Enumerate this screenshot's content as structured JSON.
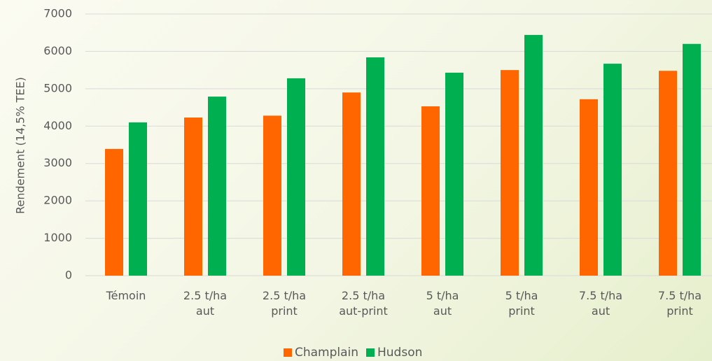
{
  "chart_data": {
    "type": "bar",
    "ylabel": "Rendement (14,5% TEE)",
    "categories": [
      "Témoin",
      "2.5 t/ha\naut",
      "2.5 t/ha\nprint",
      "2.5 t/ha\naut-print",
      "5 t/ha\naut",
      "5 t/ha\nprint",
      "7.5 t/ha\naut",
      "7.5 t/ha\nprint"
    ],
    "series": [
      {
        "name": "Champlain",
        "color": "#ff6600",
        "values": [
          3390,
          4230,
          4280,
          4900,
          4530,
          5500,
          4720,
          5480
        ]
      },
      {
        "name": "Hudson",
        "color": "#00b050",
        "values": [
          4100,
          4790,
          5280,
          5840,
          5430,
          6440,
          5670,
          6200
        ]
      }
    ],
    "ylim": [
      0,
      7000
    ],
    "yticks": [
      0,
      1000,
      2000,
      3000,
      4000,
      5000,
      6000,
      7000
    ],
    "grid": true,
    "legend": "bottom"
  }
}
